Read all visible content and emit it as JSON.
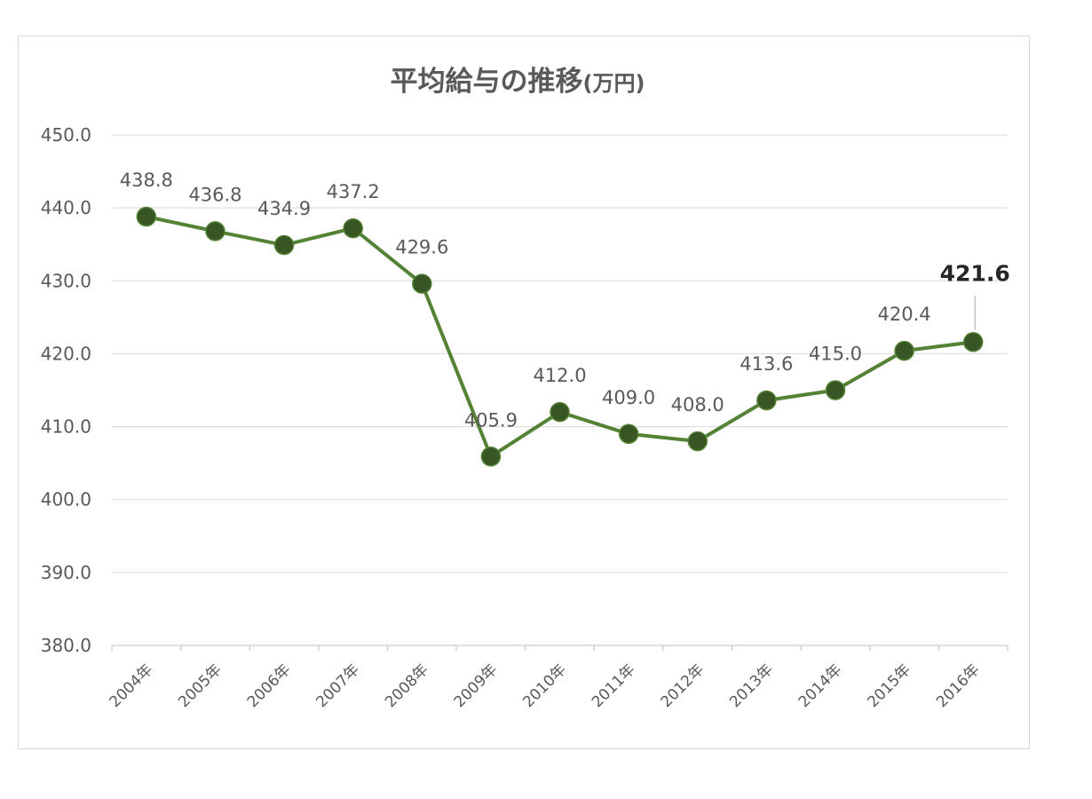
{
  "chart_data": {
    "type": "line",
    "title": "平均給与の推移",
    "title_unit": "(万円)",
    "categories": [
      "2004年",
      "2005年",
      "2006年",
      "2007年",
      "2008年",
      "2009年",
      "2010年",
      "2011年",
      "2012年",
      "2013年",
      "2014年",
      "2015年",
      "2016年"
    ],
    "series": [
      {
        "values": [
          438.8,
          436.8,
          434.9,
          437.2,
          429.6,
          405.9,
          412.0,
          409.0,
          408.0,
          413.6,
          415.0,
          420.4,
          421.6
        ],
        "labels": [
          "438.8",
          "436.8",
          "434.9",
          "437.2",
          "429.6",
          "405.9",
          "412.0",
          "409.0",
          "408.0",
          "413.6",
          "415.0",
          "420.4",
          "421.6"
        ],
        "highlight_index": 12,
        "color": "#548235",
        "marker_color": "#375623"
      }
    ],
    "y_ticks": [
      "380.0",
      "390.0",
      "400.0",
      "410.0",
      "420.0",
      "430.0",
      "440.0",
      "450.0"
    ],
    "ylim": [
      380,
      450
    ],
    "grid": true,
    "legend": "none",
    "xlabel": "",
    "ylabel": ""
  }
}
